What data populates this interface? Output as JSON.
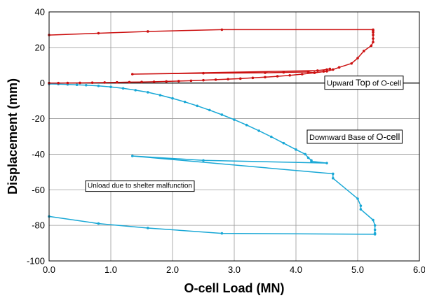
{
  "chart_data": {
    "type": "line",
    "xlabel": "O-cell Load (MN)",
    "ylabel": "Displacement (mm)",
    "xlim": [
      0,
      6
    ],
    "ylim": [
      -100,
      40
    ],
    "x_ticks": [
      "0.0",
      "1.0",
      "2.0",
      "3.0",
      "4.0",
      "5.0",
      "6.0"
    ],
    "y_ticks": [
      "-100",
      "-80",
      "-60",
      "-40",
      "-20",
      "0",
      "20",
      "40"
    ],
    "x_tick_values": [
      0,
      1,
      2,
      3,
      4,
      5,
      6
    ],
    "y_tick_values": [
      -100,
      -80,
      -60,
      -40,
      -20,
      0,
      20,
      40
    ],
    "grid": true,
    "series": [
      {
        "name": "Upward Top of O-cell",
        "color": "#cc1111",
        "x": [
          0.0,
          0.15,
          0.3,
          0.5,
          0.7,
          0.9,
          1.1,
          1.3,
          1.5,
          1.7,
          1.9,
          2.1,
          2.3,
          2.5,
          2.7,
          2.9,
          3.1,
          3.3,
          3.5,
          3.7,
          3.9,
          4.1,
          4.3,
          4.5,
          4.6,
          4.7,
          4.9,
          5.0,
          5.1,
          5.22,
          5.25,
          5.25,
          5.25,
          5.25,
          5.25,
          5.25,
          2.8,
          1.6,
          0.8,
          0.0
        ],
        "y": [
          0.0,
          0.0,
          0.05,
          0.1,
          0.2,
          0.3,
          0.4,
          0.5,
          0.6,
          0.7,
          0.9,
          1.1,
          1.3,
          1.6,
          1.9,
          2.2,
          2.5,
          2.9,
          3.3,
          3.8,
          4.3,
          5.0,
          5.8,
          6.6,
          7.6,
          8.8,
          11.0,
          14.0,
          18.0,
          21.0,
          23.0,
          25.0,
          27.0,
          28.5,
          29.5,
          30.0,
          30.0,
          29.0,
          28.0,
          27.0
        ],
        "x_loop": [
          4.45,
          4.3,
          4.2,
          3.8,
          3.5,
          2.5,
          1.35,
          4.35,
          4.5,
          4.55
        ],
        "y_loop": [
          6.5,
          5.8,
          6.2,
          6.0,
          5.8,
          5.5,
          5.0,
          7.0,
          7.6,
          8.0
        ]
      },
      {
        "name": "Downward Base of O-cell",
        "color": "#19a8d6",
        "x": [
          0.0,
          0.15,
          0.3,
          0.45,
          0.6,
          0.8,
          1.0,
          1.2,
          1.4,
          1.6,
          1.8,
          2.0,
          2.2,
          2.4,
          2.6,
          2.8,
          3.0,
          3.2,
          3.4,
          3.6,
          3.8,
          4.0,
          4.15,
          4.2,
          4.25,
          4.25,
          4.5,
          2.5,
          1.35,
          4.6,
          4.6,
          5.0,
          5.05,
          5.05,
          5.25,
          5.28,
          5.28,
          5.28,
          5.28,
          2.8,
          1.6,
          0.8,
          0.0
        ],
        "y": [
          -0.5,
          -0.6,
          -0.8,
          -1.0,
          -1.2,
          -1.6,
          -2.2,
          -3.0,
          -4.0,
          -5.2,
          -6.8,
          -8.6,
          -10.6,
          -12.8,
          -15.2,
          -17.8,
          -20.6,
          -23.6,
          -26.8,
          -30.2,
          -33.8,
          -37.4,
          -40.0,
          -42.0,
          -43.5,
          -44.0,
          -45.0,
          -43.5,
          -41.0,
          -51.0,
          -53.5,
          -65.0,
          -69.0,
          -71.0,
          -77.0,
          -80.0,
          -82.5,
          -84.5,
          -85.0,
          -84.5,
          -81.5,
          -79.0,
          -75.0
        ]
      }
    ],
    "annotations": [
      {
        "text_a": "Upward ",
        "text_b": "Top",
        "text_c": " of O-cell",
        "x": 5.0,
        "y": 0.0
      },
      {
        "text_a": "Downward Base of ",
        "text_b": "O-cell",
        "x": 4.6,
        "y": -30.0
      },
      {
        "text": "Unload due to shelter malfunction",
        "x": 1.05,
        "y": -58.0
      }
    ]
  }
}
